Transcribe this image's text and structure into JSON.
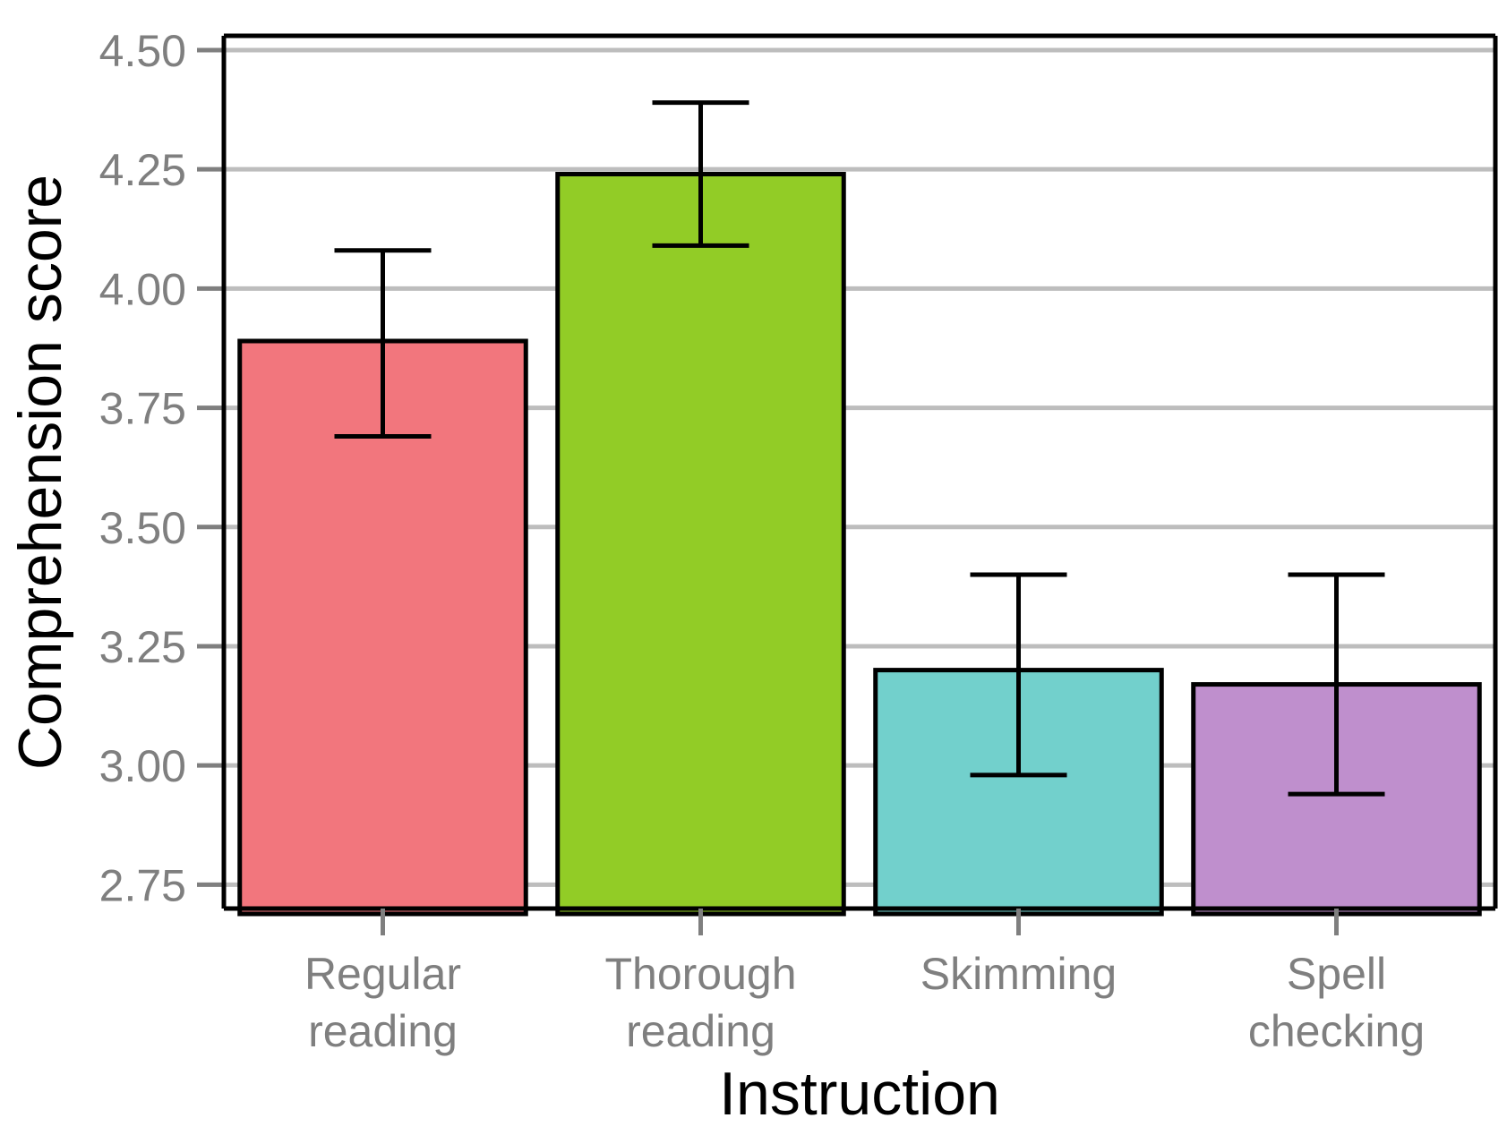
{
  "chart_data": {
    "type": "bar",
    "xlabel": "Instruction",
    "ylabel": "Comprehension score",
    "ylim": [
      2.7,
      4.53
    ],
    "yticks": [
      "4.50",
      "4.25",
      "4.00",
      "3.75",
      "3.50",
      "3.25",
      "3.00",
      "2.75"
    ],
    "grid": true,
    "legend": "none",
    "categories": [
      {
        "lines": [
          "Regular",
          "reading"
        ]
      },
      {
        "lines": [
          "Thorough",
          "reading"
        ]
      },
      {
        "lines": [
          "Skimming"
        ]
      },
      {
        "lines": [
          "Spell",
          "checking"
        ]
      }
    ],
    "values": [
      3.89,
      4.24,
      3.2,
      3.17
    ],
    "error_low": [
      3.69,
      4.09,
      2.98,
      2.94
    ],
    "error_high": [
      4.08,
      4.39,
      3.4,
      3.4
    ],
    "colors": [
      "#F2767D",
      "#92CC26",
      "#72D0CC",
      "#BF8FCD"
    ]
  }
}
